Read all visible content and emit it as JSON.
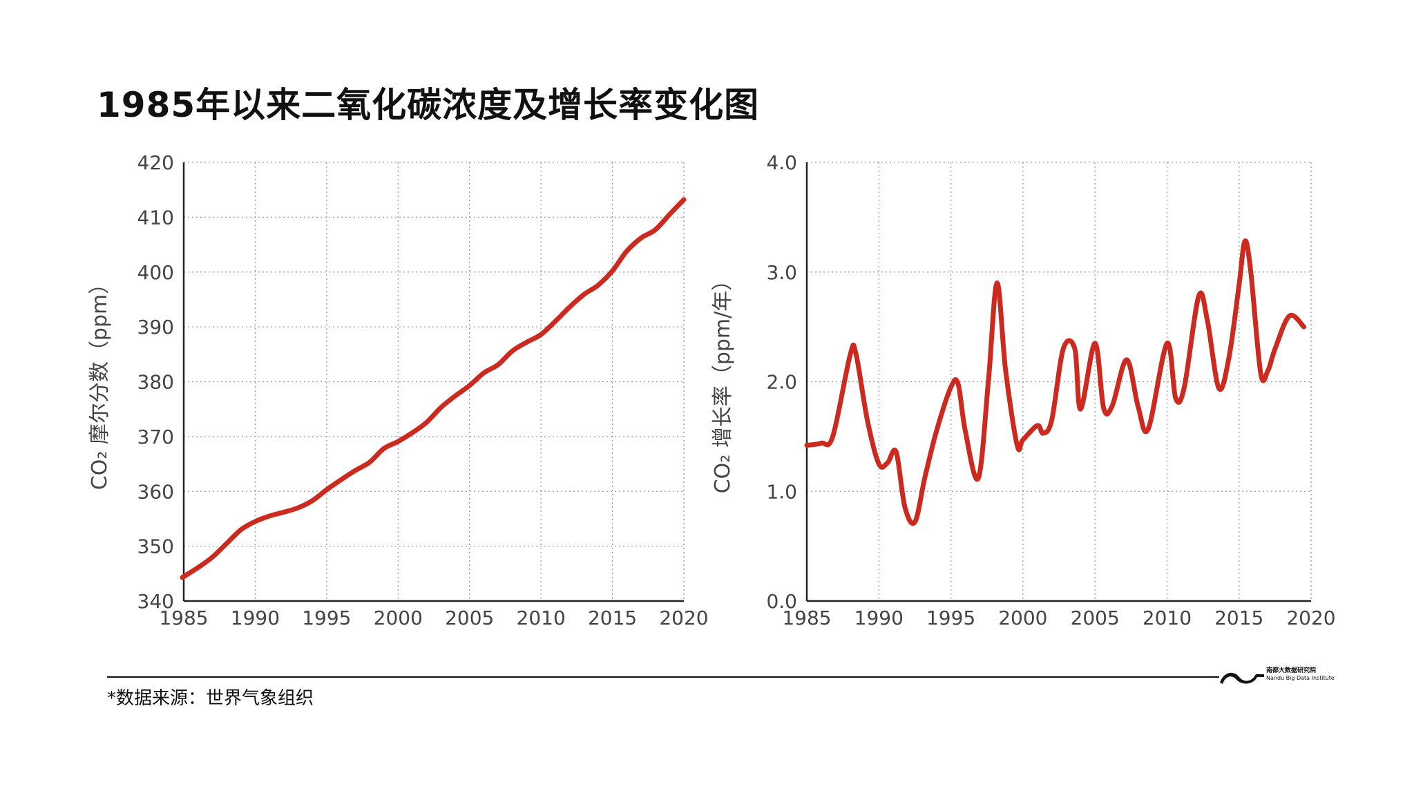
{
  "title": "1985年以来二氧化碳浓度及增长率变化图",
  "footer": {
    "source": "*数据来源：世界气象组织",
    "logo_cn": "南都大数据研究院",
    "logo_en": "Nandu Big Data Institute"
  },
  "colors": {
    "series": "#cc2a1e",
    "grid": "#9a9a9a",
    "axis": "#222222"
  },
  "chart_data": [
    {
      "type": "line",
      "title": "",
      "xlabel": "",
      "ylabel": "CO₂ 摩尔分数（ppm）",
      "xlim": [
        1985,
        2020
      ],
      "ylim": [
        340,
        420
      ],
      "xticks": [
        1985,
        1990,
        1995,
        2000,
        2005,
        2010,
        2015,
        2020
      ],
      "xtick_labels": [
        "1985",
        "1990",
        "1995",
        "2000",
        "2005",
        "2010",
        "2015",
        "2020"
      ],
      "yticks": [
        340,
        350,
        360,
        370,
        380,
        390,
        400,
        410,
        420
      ],
      "ytick_labels": [
        "340",
        "350",
        "360",
        "370",
        "380",
        "390",
        "400",
        "410",
        "420"
      ],
      "grid": true,
      "series": [
        {
          "x": [
            1984.9,
            1986,
            1987,
            1988,
            1989,
            1990,
            1991,
            1992,
            1993,
            1994,
            1995,
            1996,
            1997,
            1998,
            1999,
            2000,
            2001,
            2002,
            2003,
            2004,
            2005,
            2006,
            2007,
            2008,
            2009,
            2010,
            2011,
            2012,
            2013,
            2014,
            2015,
            2016,
            2017,
            2018,
            2019,
            2020
          ],
          "values": [
            344.3,
            346.1,
            348.0,
            350.5,
            353.0,
            354.5,
            355.5,
            356.2,
            357.0,
            358.3,
            360.3,
            362.1,
            363.8,
            365.3,
            367.8,
            369.1,
            370.7,
            372.6,
            375.3,
            377.4,
            379.3,
            381.6,
            383.1,
            385.6,
            387.2,
            388.6,
            391.0,
            393.6,
            395.9,
            397.6,
            400.2,
            403.8,
            406.2,
            407.7,
            410.5,
            413.2
          ]
        }
      ]
    },
    {
      "type": "line",
      "title": "",
      "xlabel": "",
      "ylabel": "CO₂ 增长率（ppm/年）",
      "xlim": [
        1985,
        2020
      ],
      "ylim": [
        0,
        4
      ],
      "xticks": [
        1985,
        1990,
        1995,
        2000,
        2005,
        2010,
        2015,
        2020
      ],
      "xtick_labels": [
        "1985",
        "1990",
        "1995",
        "2000",
        "2005",
        "2010",
        "2015",
        "2020"
      ],
      "yticks": [
        0,
        1,
        2,
        3,
        4
      ],
      "ytick_labels": [
        "0.0",
        "1.0",
        "2.0",
        "3.0",
        "4.0"
      ],
      "grid": true,
      "series": [
        {
          "x": [
            1985,
            1986,
            1986.8,
            1988,
            1988.4,
            1989.2,
            1990,
            1990.6,
            1991.2,
            1991.8,
            1992.5,
            1993.2,
            1994,
            1995,
            1995.5,
            1996,
            1996.9,
            1997.6,
            1998.2,
            1998.8,
            1999.6,
            2000,
            2001,
            2001.4,
            2002,
            2002.8,
            2003.6,
            2004,
            2005,
            2005.6,
            2006.2,
            2007.2,
            2008,
            2008.7,
            2010,
            2010.6,
            2011.2,
            2012.2,
            2012.8,
            2013.6,
            2014.3,
            2015,
            2015.4,
            2015.8,
            2016.5,
            2017,
            2017.5,
            2018.5,
            2019.5
          ],
          "values": [
            1.42,
            1.44,
            1.5,
            2.24,
            2.26,
            1.65,
            1.25,
            1.26,
            1.36,
            0.86,
            0.72,
            1.13,
            1.55,
            1.95,
            1.98,
            1.55,
            1.12,
            2.0,
            2.9,
            2.1,
            1.42,
            1.47,
            1.6,
            1.53,
            1.65,
            2.3,
            2.3,
            1.75,
            2.35,
            1.76,
            1.78,
            2.2,
            1.77,
            1.57,
            2.35,
            1.85,
            1.95,
            2.78,
            2.56,
            1.94,
            2.22,
            2.88,
            3.28,
            3.02,
            2.08,
            2.1,
            2.3,
            2.6,
            2.5
          ]
        }
      ]
    }
  ]
}
